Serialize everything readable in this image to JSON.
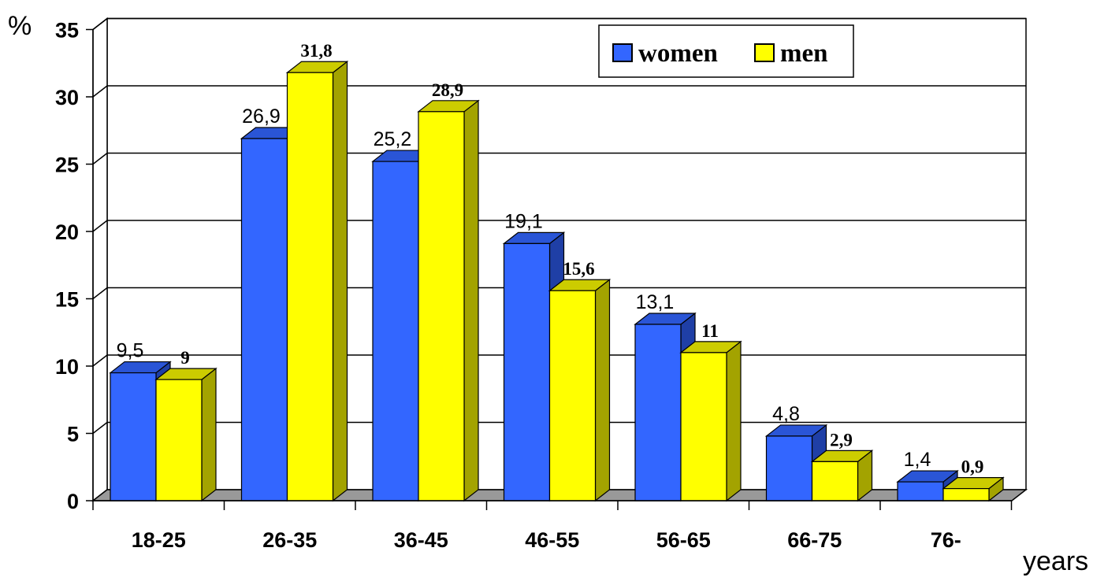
{
  "chart_data": {
    "type": "bar",
    "categories": [
      "18-25",
      "26-35",
      "36-45",
      "46-55",
      "56-65",
      "66-75",
      "76-"
    ],
    "series": [
      {
        "name": "women",
        "color": "#3366ff",
        "values": [
          9.5,
          26.9,
          25.2,
          19.1,
          13.1,
          4.8,
          1.4
        ],
        "labels": [
          "9,5",
          "26,9",
          "25,2",
          "19,1",
          "13,1",
          "4,8",
          "1,4"
        ]
      },
      {
        "name": "men",
        "color": "#ffff00",
        "values": [
          9,
          31.8,
          28.9,
          15.6,
          11,
          2.9,
          0.9
        ],
        "labels": [
          "9",
          "31,8",
          "28,9",
          "15,6",
          "11",
          "2,9",
          "0,9"
        ]
      }
    ],
    "ylabel": "%",
    "xlabel": "years",
    "ylim": [
      0,
      35
    ],
    "yticks": [
      0,
      5,
      10,
      15,
      20,
      25,
      30,
      35
    ],
    "grid": true,
    "legend": "top-right",
    "style": "3d-bar"
  }
}
